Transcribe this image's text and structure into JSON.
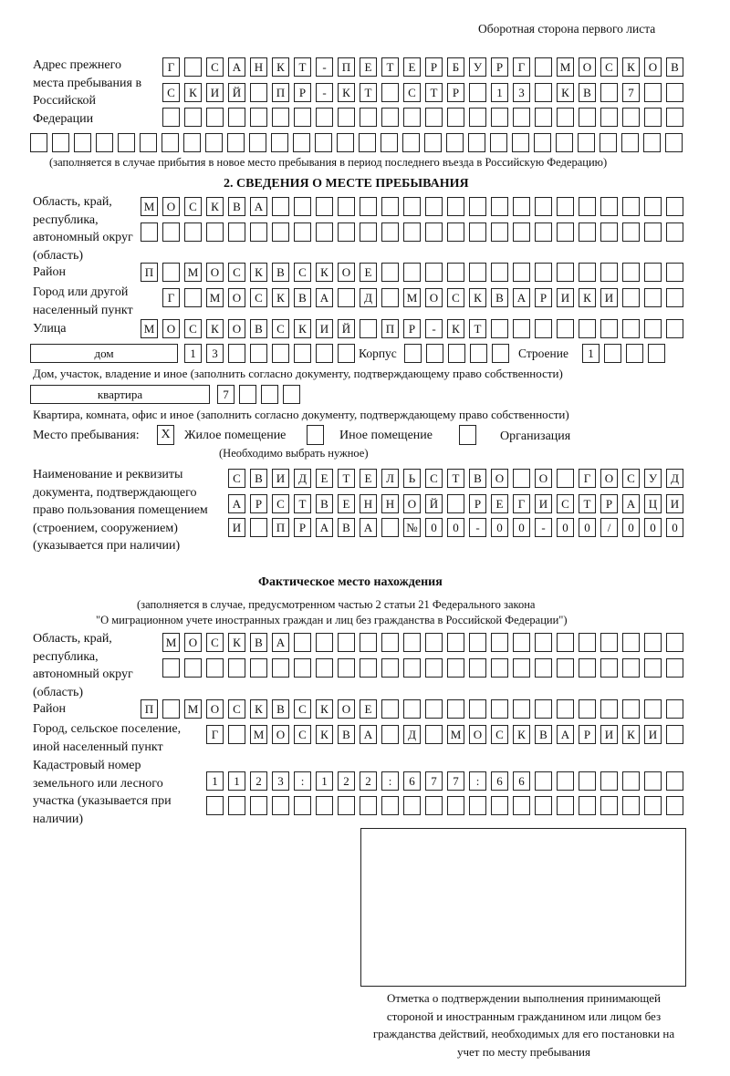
{
  "page_header": "Оборотная сторона первого листа",
  "prev_address": {
    "label": "Адрес прежнего места пребывания в Российской Федерации",
    "rows": [
      "Г САНКТ-ПЕТЕРБУРГ МОСКОВ",
      "СКИЙ ПР-КТ СТР 13 КВ 7",
      "",
      ""
    ],
    "note": "(заполняется в случае прибытия в новое место пребывания в период последнего въезда в Российскую Федерацию)"
  },
  "section2": {
    "title": "2. СВЕДЕНИЯ О МЕСТЕ ПРЕБЫВАНИЯ",
    "region_label": "Область, край, республика, автономный округ (область)",
    "region_rows": [
      "МОСКВА",
      ""
    ],
    "district_label": "Район",
    "district": "П МОСКВСКОЕ",
    "city_label": "Город или другой населенный пункт",
    "city": "Г МОСКВА Д МОСКВАРИКИ",
    "street_label": "Улица",
    "street": "МОСКОВСКИЙ ПР-КТ",
    "house_type": "дом",
    "house_number": "13",
    "korpus_label": "Корпус",
    "korpus": "",
    "building_label": "Строение",
    "building": "1",
    "house_caption": "Дом, участок, владение и иное (заполнить согласно документу, подтверждающему право собственности)",
    "apt_type": "квартира",
    "apt_number": "7",
    "apt_caption": "Квартира, комната, офис и иное (заполнить согласно документу, подтверждающему право собственности)",
    "place_label": "Место пребывания:",
    "place_options": [
      {
        "label": "Жилое помещение",
        "checked": true,
        "mark": "X"
      },
      {
        "label": "Иное помещение",
        "checked": false,
        "mark": ""
      },
      {
        "label": "Организация",
        "checked": false,
        "mark": ""
      }
    ],
    "place_hint": "(Необходимо выбрать нужное)",
    "doc_label": "Наименование и реквизиты документа, подтверждающего право пользования помещением (строением, сооружением) (указывается при наличии)",
    "doc_rows": [
      "СВИДЕТЕЛЬСТВО О ГОСУД",
      "АРСТВЕННОЙ РЕГИСТРАЦИ",
      "И ПРАВА №00-00-00/000"
    ]
  },
  "actual": {
    "title": "Фактическое место нахождения",
    "note1": "(заполняется в случае, предусмотренном частью 2 статьи 21 Федерального закона",
    "note2": "\"О миграционном учете иностранных граждан и лиц без гражданства в Российской Федерации\")",
    "region_label": "Область, край, республика, автономный округ (область)",
    "region_rows": [
      "МОСКВА",
      ""
    ],
    "district_label": "Район",
    "district": "П МОСКВСКОЕ",
    "city_label": "Город, сельское поселение, иной населенный пункт",
    "city": "Г МОСКВА Д МОСКВАРИКИ",
    "cadastral_label": "Кадастровый номер земельного или лесного участка (указывается при наличии)",
    "cadastral_rows": [
      "1123:122:677:66",
      ""
    ]
  },
  "stamp": {
    "caption": "Отметка о подтверждении выполнения принимающей стороной и иностранным гражданином или лицом без гражданства действий, необходимых для его постановки на учет по месту пребывания"
  }
}
